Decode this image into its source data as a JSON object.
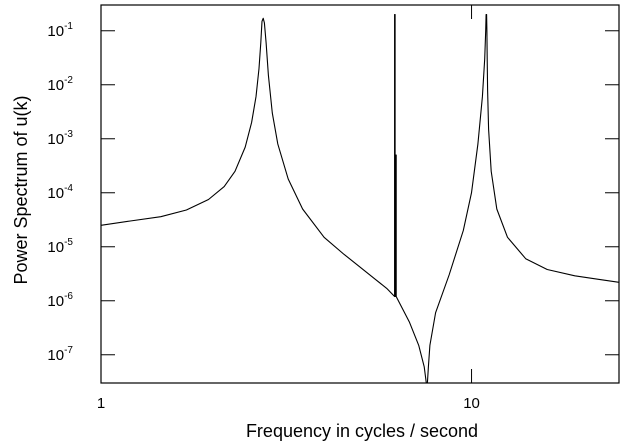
{
  "chart_data": {
    "type": "line",
    "title": "",
    "xlabel": "Frequency in cycles / second",
    "ylabel": "Power Spectrum of u(k)",
    "xscale": "log",
    "yscale": "log",
    "xlim": [
      1,
      25
    ],
    "ylim": [
      3e-08,
      0.3
    ],
    "grid": false,
    "legend": "none",
    "line_color": "#000000",
    "x_ticks": [
      {
        "value": 1,
        "label": "1"
      },
      {
        "value": 10,
        "label": "10"
      }
    ],
    "y_ticks": [
      {
        "value": 0.1,
        "base": "10",
        "exp": "-1"
      },
      {
        "value": 0.01,
        "base": "10",
        "exp": "-2"
      },
      {
        "value": 0.001,
        "base": "10",
        "exp": "-3"
      },
      {
        "value": 0.0001,
        "base": "10",
        "exp": "-4"
      },
      {
        "value": 1e-05,
        "base": "10",
        "exp": "-5"
      },
      {
        "value": 1e-06,
        "base": "10",
        "exp": "-6"
      },
      {
        "value": 1e-07,
        "base": "10",
        "exp": "-7"
      }
    ],
    "series": [
      {
        "x": [
          1.0,
          1.2,
          1.45,
          1.7,
          1.95,
          2.15,
          2.3,
          2.45,
          2.55,
          2.62,
          2.67,
          2.7,
          2.72,
          2.74,
          2.76,
          2.79,
          2.83,
          2.9,
          3.0,
          3.2,
          3.5,
          4.0,
          4.5,
          5.0,
          5.5,
          5.9,
          6.2,
          6.2,
          6.22,
          6.22,
          6.24,
          6.24,
          6.26,
          6.26,
          6.3,
          6.8,
          7.2,
          7.45,
          7.55,
          7.6,
          7.65,
          7.72,
          8.0,
          8.7,
          9.5,
          10.0,
          10.4,
          10.7,
          10.85,
          10.92,
          10.95,
          10.98,
          11.0,
          11.02,
          11.05,
          11.12,
          11.3,
          11.7,
          12.5,
          14.0,
          16.0,
          19.0,
          22.0,
          25.0
        ],
        "y": [
          2.5e-05,
          3e-05,
          3.6e-05,
          4.8e-05,
          7.5e-05,
          0.00013,
          0.00025,
          0.0007,
          0.002,
          0.006,
          0.02,
          0.06,
          0.15,
          0.17,
          0.14,
          0.06,
          0.015,
          0.003,
          0.0008,
          0.00018,
          5e-05,
          1.5e-05,
          7.5e-06,
          4.2e-06,
          2.5e-06,
          1.7e-06,
          1.2e-06,
          0.2,
          0.2,
          1.2e-06,
          1.2e-06,
          0.0005,
          0.0005,
          1.2e-06,
          1.1e-06,
          4e-07,
          1.5e-07,
          6e-08,
          3e-08,
          3e-08,
          6e-08,
          1.5e-07,
          6e-07,
          3e-06,
          2e-05,
          0.0001,
          0.0008,
          0.006,
          0.03,
          0.1,
          0.2,
          0.2,
          0.1,
          0.03,
          0.008,
          0.0015,
          0.00025,
          5e-05,
          1.5e-05,
          6e-06,
          3.8e-06,
          2.9e-06,
          2.5e-06,
          2.2e-06
        ]
      }
    ]
  }
}
